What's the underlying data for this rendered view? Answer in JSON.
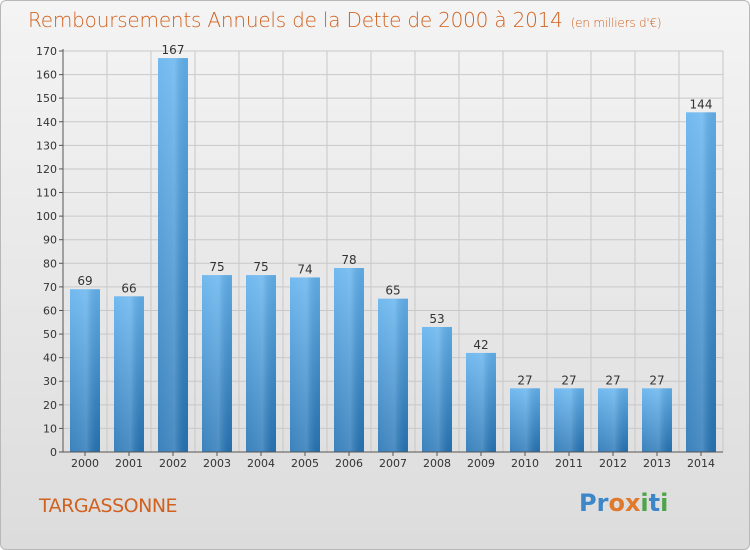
{
  "chart_data": {
    "type": "bar",
    "title": "Remboursements Annuels de la Dette de 2000 à 2014",
    "unit_note": "(en milliers d'€)",
    "categories": [
      "2000",
      "2001",
      "2002",
      "2003",
      "2004",
      "2005",
      "2006",
      "2007",
      "2008",
      "2009",
      "2010",
      "2011",
      "2012",
      "2013",
      "2014"
    ],
    "values": [
      69,
      66,
      167,
      75,
      75,
      74,
      78,
      65,
      53,
      42,
      27,
      27,
      27,
      27,
      144
    ],
    "ylim": [
      0,
      170
    ],
    "yticks": [
      0,
      10,
      20,
      30,
      40,
      50,
      60,
      70,
      80,
      90,
      100,
      110,
      120,
      130,
      140,
      150,
      160,
      170
    ],
    "grid": true,
    "bar_color_top": "#62b2ee",
    "bar_color_bottom": "#2574b5"
  },
  "footer": {
    "town": "TARGASSONNE",
    "logo": [
      "Pr",
      "o",
      "x",
      "i",
      "t",
      "i"
    ]
  }
}
